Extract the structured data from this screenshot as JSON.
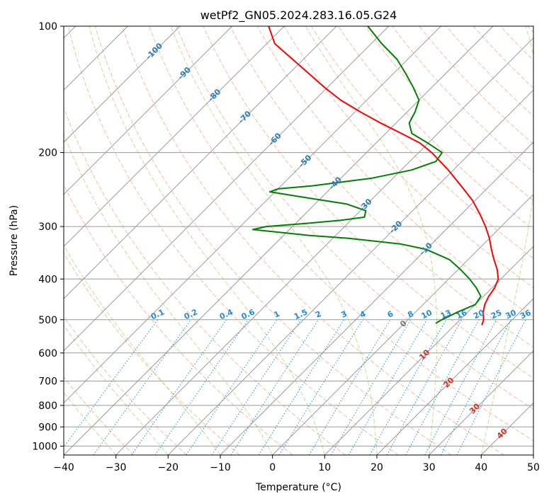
{
  "chart_data": {
    "type": "line",
    "chart_kind": "skew-T log-P diagram",
    "title": "wetPf2_GN05.2024.283.16.05.G24",
    "xlabel": "Temperature (°C)",
    "ylabel": "Pressure (hPa)",
    "xlim": [
      -40,
      50
    ],
    "ylim": [
      1050,
      100
    ],
    "y_scale": "log",
    "skew_degrees": 45,
    "grid": true,
    "x_ticks": [
      -40,
      -30,
      -20,
      -10,
      0,
      10,
      20,
      30,
      40,
      50
    ],
    "x_tick_labels": [
      "−40",
      "−30",
      "−20",
      "−10",
      "0",
      "10",
      "20",
      "30",
      "40",
      "50"
    ],
    "y_ticks": [
      100,
      200,
      300,
      400,
      500,
      600,
      700,
      800,
      900,
      1000
    ],
    "y_tick_labels": [
      "100",
      "200",
      "300",
      "400",
      "500",
      "600",
      "700",
      "800",
      "900",
      "1000"
    ],
    "isotherm_label_values": [
      -100,
      -90,
      -80,
      -70,
      -60,
      -50,
      -40,
      -30,
      -20,
      -10
    ],
    "isotherm_labels": [
      "-100",
      "-90",
      "-80",
      "-70",
      "-60",
      "-50",
      "-40",
      "-30",
      "-20",
      "-10"
    ],
    "isotherm_label_pressures": [
      100,
      100,
      100,
      100,
      100,
      100,
      100,
      100,
      100,
      100
    ],
    "mixing_ratio_values": [
      0.1,
      0.2,
      0.4,
      0.6,
      1,
      1.5,
      2,
      3,
      4,
      6,
      8,
      10,
      13,
      16,
      20,
      25,
      30,
      36
    ],
    "mixing_ratio_labels": [
      "0.1",
      "0.2",
      "0.4",
      "0.6",
      "1",
      "1.5",
      "2",
      "3",
      "4",
      "6",
      "8",
      "10",
      "13",
      "16",
      "20",
      "25",
      "30",
      "36"
    ],
    "warm_isotherm_labels": [
      {
        "text": "0",
        "value": 0,
        "pressure": 512
      },
      {
        "text": "10",
        "value": 10,
        "pressure": 607
      },
      {
        "text": "20",
        "value": 20,
        "pressure": 707
      },
      {
        "text": "30",
        "value": 30,
        "pressure": 816
      },
      {
        "text": "40",
        "value": 40,
        "pressure": 935
      }
    ],
    "series": [
      {
        "role": "temperature",
        "color": "#ff0000",
        "points": [
          {
            "p": 515,
            "t": 15.2
          },
          {
            "p": 500,
            "t": 14.5
          },
          {
            "p": 480,
            "t": 13.0
          },
          {
            "p": 460,
            "t": 11.8
          },
          {
            "p": 440,
            "t": 11.0
          },
          {
            "p": 420,
            "t": 10.5
          },
          {
            "p": 400,
            "t": 9.5
          },
          {
            "p": 380,
            "t": 7.5
          },
          {
            "p": 360,
            "t": 5.0
          },
          {
            "p": 340,
            "t": 2.5
          },
          {
            "p": 320,
            "t": 0.0
          },
          {
            "p": 300,
            "t": -3.0
          },
          {
            "p": 280,
            "t": -6.5
          },
          {
            "p": 260,
            "t": -10.5
          },
          {
            "p": 240,
            "t": -15.5
          },
          {
            "p": 220,
            "t": -21.0
          },
          {
            "p": 200,
            "t": -27.5
          },
          {
            "p": 190,
            "t": -31.5
          },
          {
            "p": 180,
            "t": -37.0
          },
          {
            "p": 170,
            "t": -43.0
          },
          {
            "p": 160,
            "t": -49.0
          },
          {
            "p": 150,
            "t": -55.0
          },
          {
            "p": 140,
            "t": -60.5
          },
          {
            "p": 130,
            "t": -66.0
          },
          {
            "p": 120,
            "t": -72.0
          },
          {
            "p": 110,
            "t": -78.5
          },
          {
            "p": 100,
            "t": -83.0
          }
        ]
      },
      {
        "role": "dewpoint",
        "color": "#008000",
        "points": [
          {
            "p": 510,
            "t": 6.0
          },
          {
            "p": 500,
            "t": 6.5
          },
          {
            "p": 480,
            "t": 8.0
          },
          {
            "p": 460,
            "t": 10.0
          },
          {
            "p": 440,
            "t": 9.5
          },
          {
            "p": 420,
            "t": 7.0
          },
          {
            "p": 400,
            "t": 4.0
          },
          {
            "p": 380,
            "t": 0.5
          },
          {
            "p": 360,
            "t": -3.5
          },
          {
            "p": 340,
            "t": -10.0
          },
          {
            "p": 330,
            "t": -16.0
          },
          {
            "p": 320,
            "t": -27.0
          },
          {
            "p": 315,
            "t": -35.0
          },
          {
            "p": 305,
            "t": -47.0
          },
          {
            "p": 300,
            "t": -45.0
          },
          {
            "p": 295,
            "t": -38.0
          },
          {
            "p": 290,
            "t": -32.0
          },
          {
            "p": 285,
            "t": -28.0
          },
          {
            "p": 275,
            "t": -29.0
          },
          {
            "p": 265,
            "t": -34.0
          },
          {
            "p": 255,
            "t": -44.0
          },
          {
            "p": 248,
            "t": -51.0
          },
          {
            "p": 244,
            "t": -50.0
          },
          {
            "p": 240,
            "t": -44.0
          },
          {
            "p": 230,
            "t": -34.0
          },
          {
            "p": 220,
            "t": -28.0
          },
          {
            "p": 210,
            "t": -25.0
          },
          {
            "p": 200,
            "t": -25.5
          },
          {
            "p": 190,
            "t": -30.0
          },
          {
            "p": 180,
            "t": -35.0
          },
          {
            "p": 170,
            "t": -37.5
          },
          {
            "p": 160,
            "t": -38.5
          },
          {
            "p": 150,
            "t": -40.0
          },
          {
            "p": 140,
            "t": -43.5
          },
          {
            "p": 130,
            "t": -47.5
          },
          {
            "p": 120,
            "t": -52.0
          },
          {
            "p": 110,
            "t": -58.0
          },
          {
            "p": 100,
            "t": -64.0
          }
        ]
      }
    ]
  }
}
